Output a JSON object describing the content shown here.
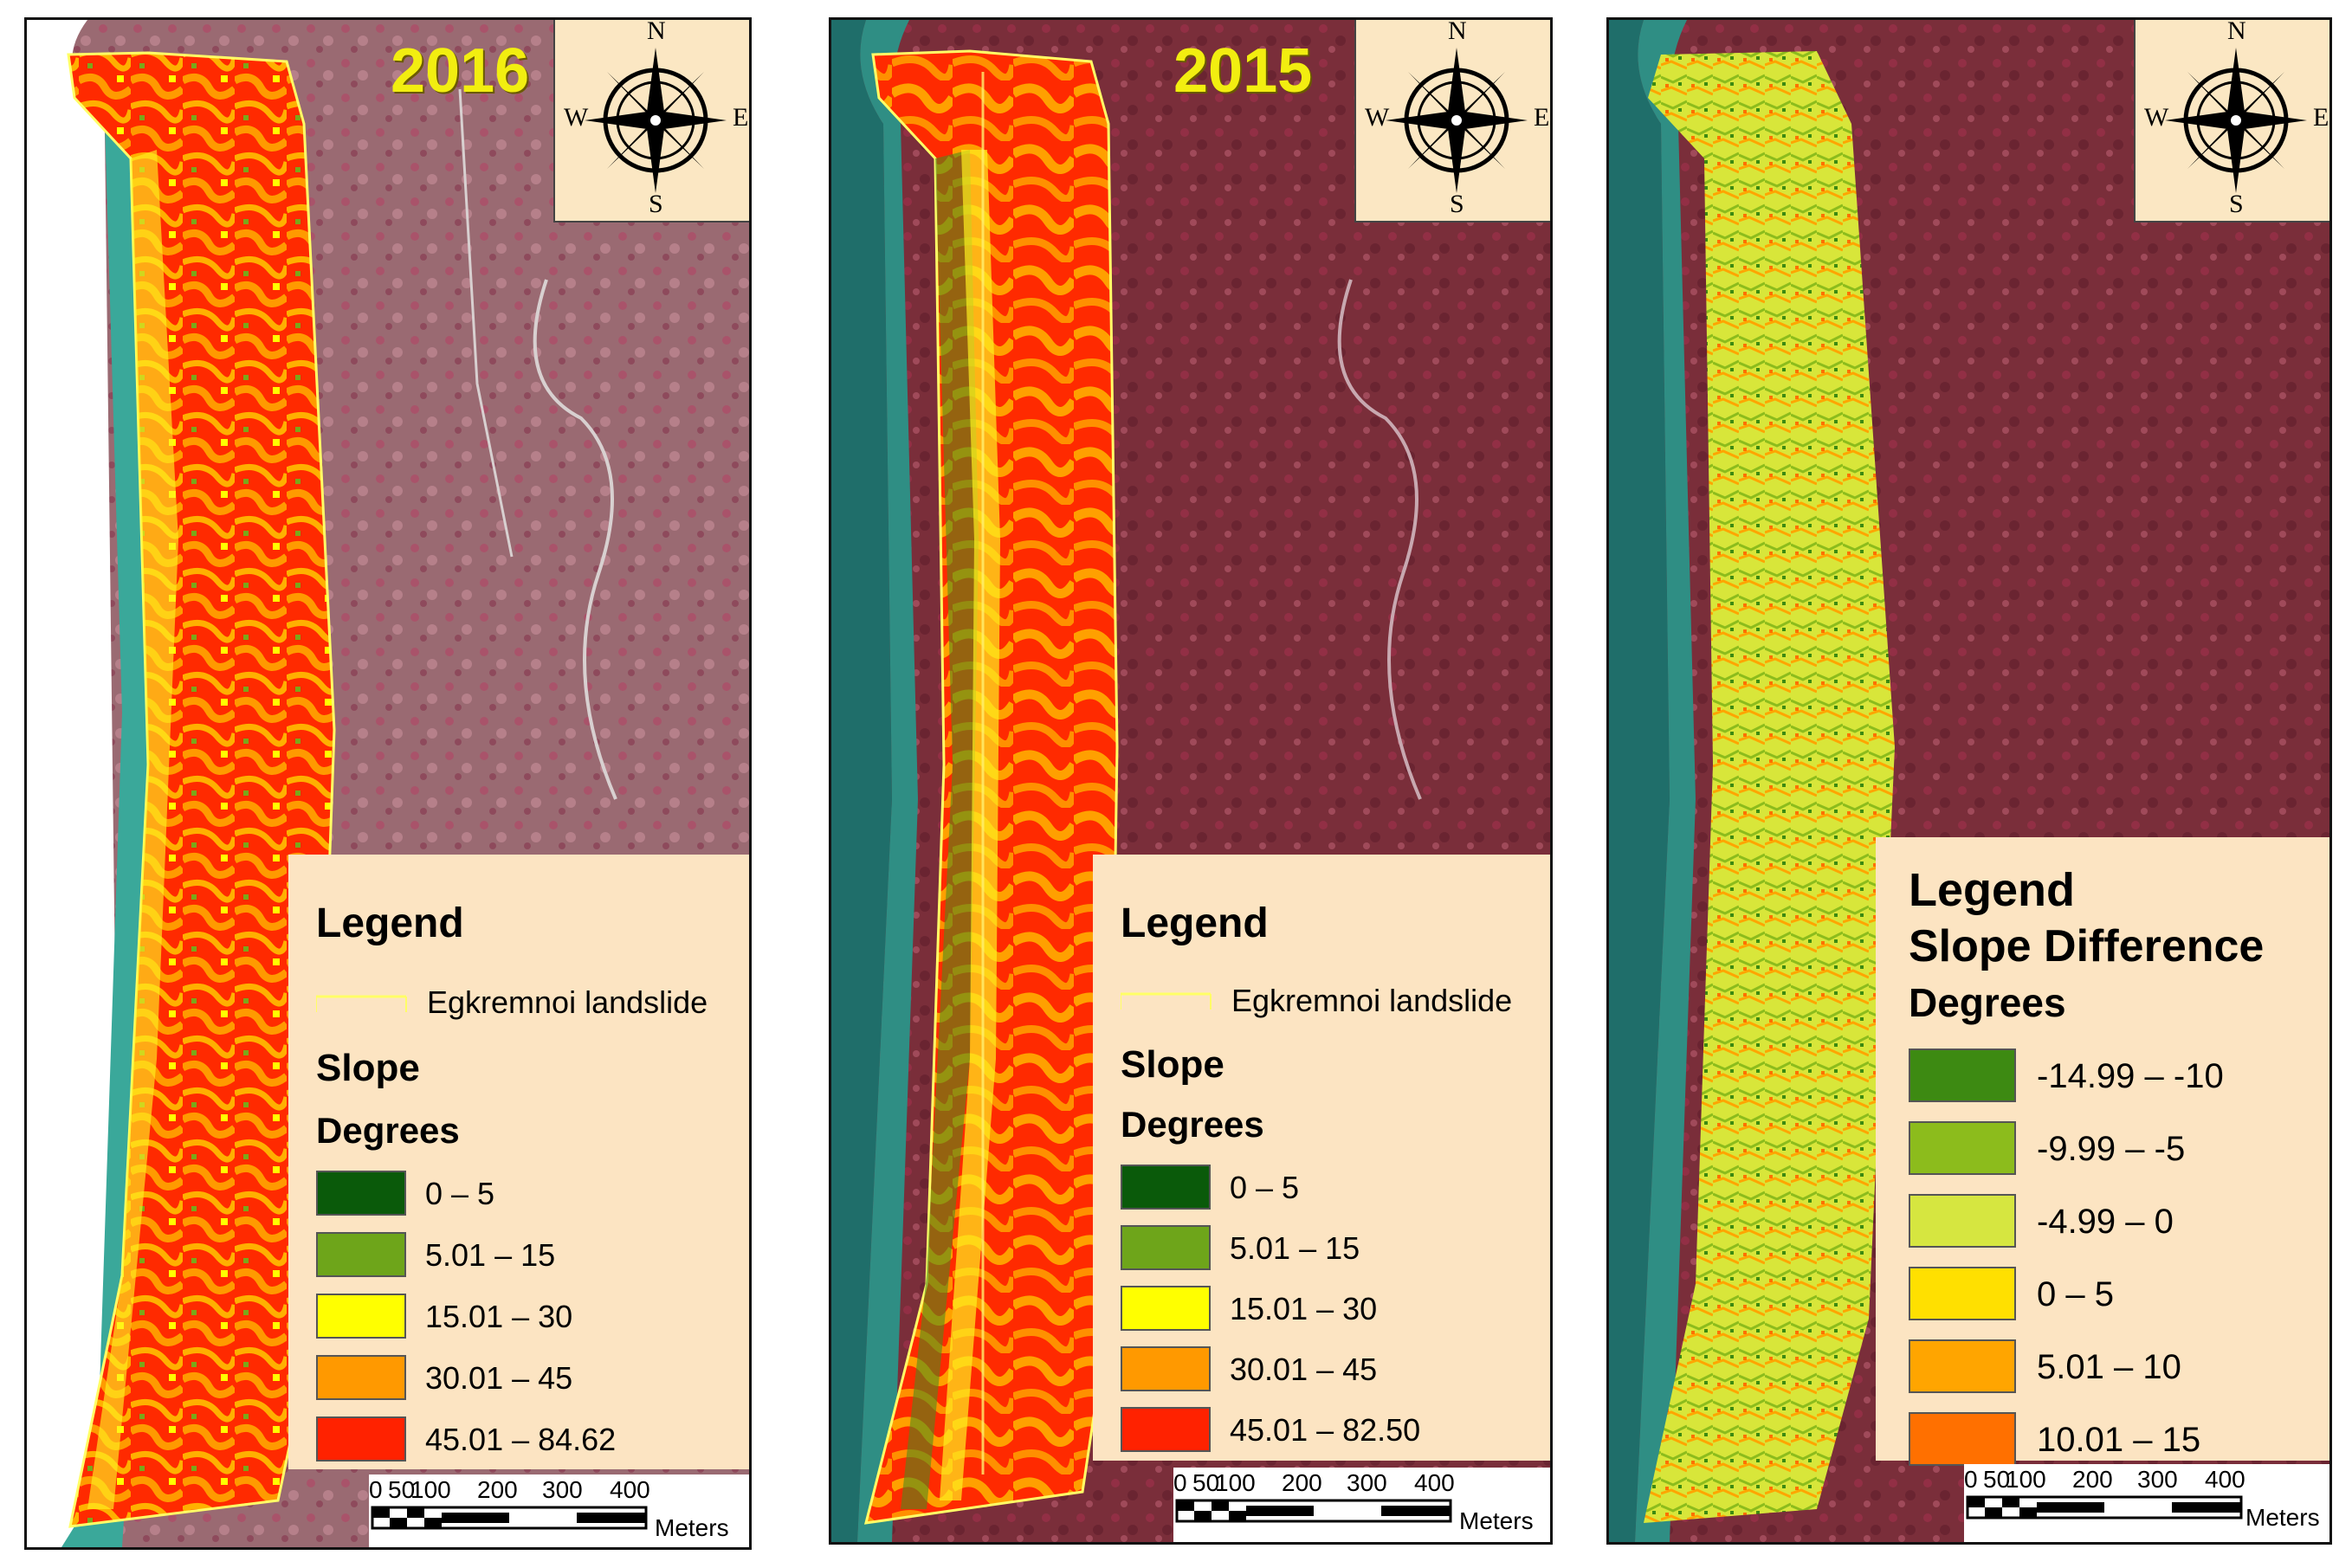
{
  "panels": [
    {
      "year": "2016",
      "compass": {
        "n": "N",
        "s": "S",
        "e": "E",
        "w": "W"
      },
      "legend": {
        "title": "Legend",
        "line_label": "Egkremnoi landslide",
        "layer": "Slope",
        "units": "Degrees",
        "classes": [
          {
            "label": "0 – 5",
            "color": "#0a5a0a"
          },
          {
            "label": "5.01 – 15",
            "color": "#6ea51a"
          },
          {
            "label": "15.01 – 30",
            "color": "#ffff00"
          },
          {
            "label": "30.01 – 45",
            "color": "#ff9900"
          },
          {
            "label": "45.01 – 84.62",
            "color": "#ff2200"
          }
        ]
      },
      "scale": {
        "ticks": [
          "0",
          "50",
          "100",
          "200",
          "300",
          "400"
        ],
        "unit": "Meters"
      }
    },
    {
      "year": "2015",
      "compass": {
        "n": "N",
        "s": "S",
        "e": "E",
        "w": "W"
      },
      "legend": {
        "title": "Legend",
        "line_label": "Egkremnoi landslide",
        "layer": "Slope",
        "units": "Degrees",
        "classes": [
          {
            "label": "0 – 5",
            "color": "#0a5a0a"
          },
          {
            "label": "5.01 – 15",
            "color": "#6ea51a"
          },
          {
            "label": "15.01 – 30",
            "color": "#ffff00"
          },
          {
            "label": "30.01 – 45",
            "color": "#ff9900"
          },
          {
            "label": "45.01 – 82.50",
            "color": "#ff2200"
          }
        ]
      },
      "scale": {
        "ticks": [
          "0",
          "50",
          "100",
          "200",
          "300",
          "400"
        ],
        "unit": "Meters"
      }
    },
    {
      "year": "",
      "compass": {
        "n": "N",
        "s": "S",
        "e": "E",
        "w": "W"
      },
      "legend": {
        "title": "Legend",
        "layer": "Slope Difference",
        "units": "Degrees",
        "classes": [
          {
            "label": "-14.99 – -10",
            "color": "#3d8a12"
          },
          {
            "label": "-9.99 – -5",
            "color": "#8cbc1c"
          },
          {
            "label": "-4.99 – 0",
            "color": "#d6e640"
          },
          {
            "label": "0 – 5",
            "color": "#ffe000"
          },
          {
            "label": "5.01 – 10",
            "color": "#ffa500"
          },
          {
            "label": "10.01 – 15",
            "color": "#ff7000"
          }
        ]
      },
      "scale": {
        "ticks": [
          "0",
          "50",
          "100",
          "200",
          "300",
          "400"
        ],
        "unit": "Meters"
      }
    }
  ],
  "colors": {
    "legend_bg": "#fce4c2",
    "land": "#8a3a48",
    "sea": "#2a7a72",
    "year_text": "#f2ee10"
  }
}
